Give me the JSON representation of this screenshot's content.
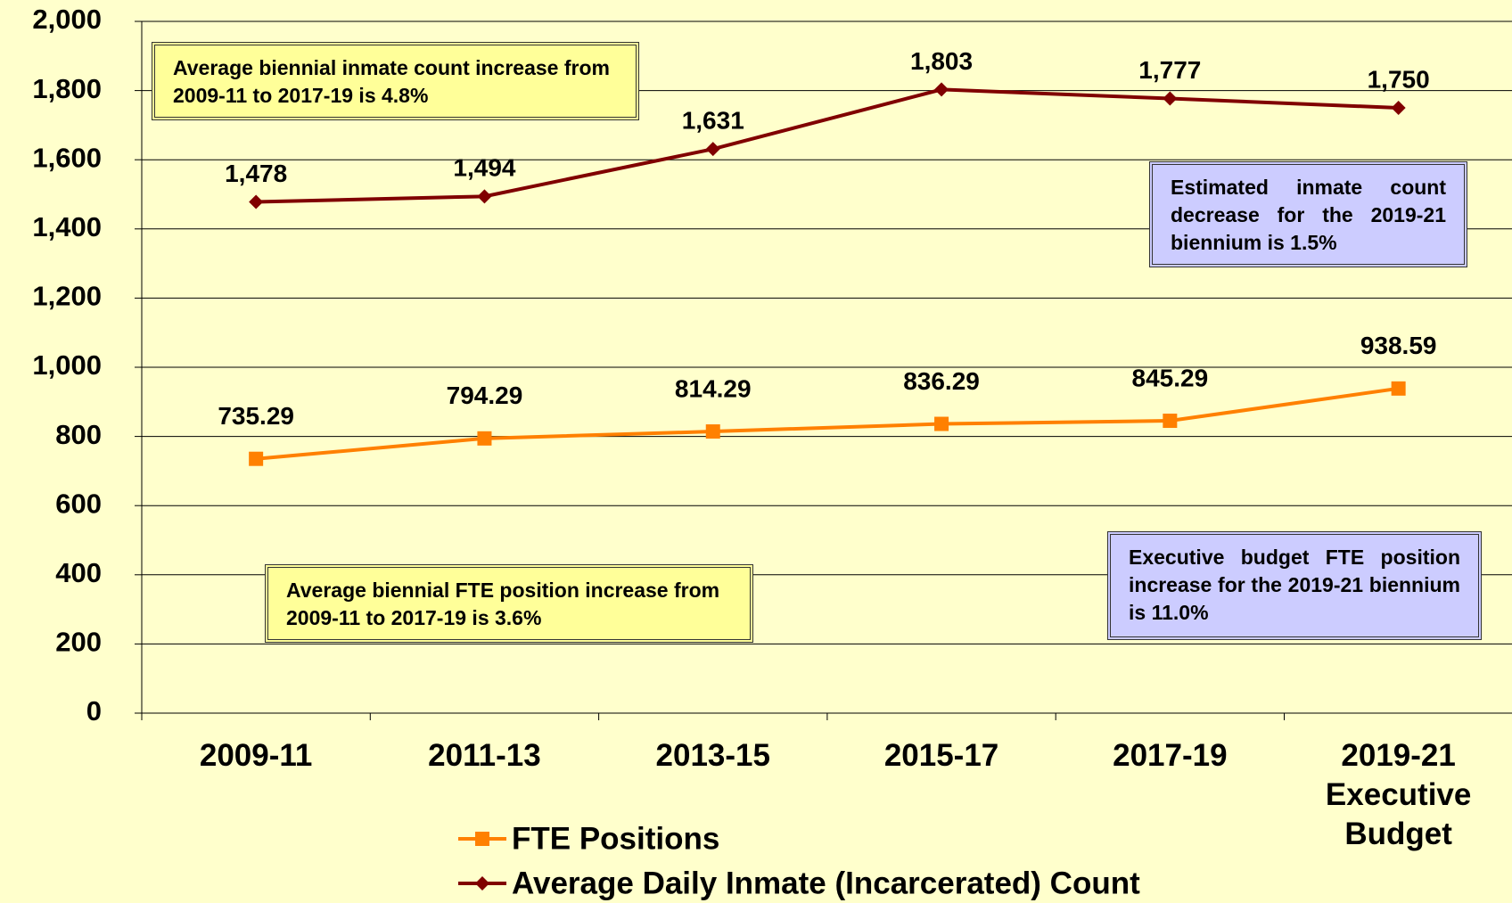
{
  "chart_data": {
    "type": "line",
    "categories": [
      "2009-11",
      "2011-13",
      "2013-15",
      "2015-17",
      "2017-19",
      "2019-21\nExecutive\nBudget"
    ],
    "series": [
      {
        "name": "FTE Positions",
        "color": "#ff8000",
        "marker": "square",
        "values": [
          735.29,
          794.29,
          814.29,
          836.29,
          845.29,
          938.59
        ]
      },
      {
        "name": "Average Daily Inmate (Incarcerated) Count",
        "color": "#800000",
        "marker": "diamond",
        "values": [
          1478,
          1494,
          1631,
          1803,
          1777,
          1750
        ],
        "value_labels": [
          "1,478",
          "1,494",
          "1,631",
          "1,803",
          "1,777",
          "1,750"
        ]
      }
    ],
    "ylim": [
      0,
      2000
    ],
    "yticks": [
      0,
      200,
      400,
      600,
      800,
      {
        "value": 1000,
        "label": "1,000"
      },
      {
        "value": 1200,
        "label": "1,200"
      },
      {
        "value": 1400,
        "label": "1,400"
      },
      {
        "value": 1600,
        "label": "1,600"
      },
      {
        "value": 1800,
        "label": "1,800"
      },
      {
        "value": 2000,
        "label": "2,000"
      }
    ],
    "grid": true,
    "legend": "bottom",
    "annotations": [
      {
        "text": "Average biennial inmate count increase from 2009-11 to 2017-19 is 4.8%",
        "color": "#ffff99"
      },
      {
        "text": "Estimated inmate count decrease for the 2019-21 biennium is 1.5%",
        "color": "#ccccff"
      },
      {
        "text": "Average biennial FTE position increase from 2009-11 to 2017-19 is 3.6%",
        "color": "#ffff99"
      },
      {
        "text": "Executive budget FTE position increase for the 2019-21 biennium is 11.0%",
        "color": "#ccccff"
      }
    ]
  }
}
